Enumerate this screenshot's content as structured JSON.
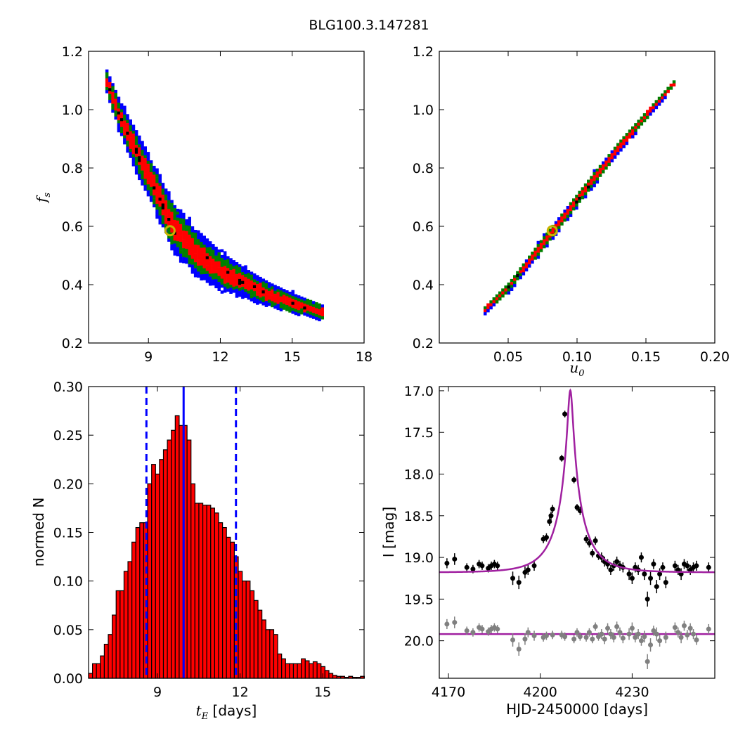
{
  "figure": {
    "title": "BLG100.3.147281"
  },
  "chart_data": [
    {
      "id": "fs_vs_tE",
      "type": "heatmap",
      "title": "",
      "xlabel": "",
      "ylabel": "f_s",
      "xlim": [
        6.5,
        18
      ],
      "ylim": [
        0.2,
        1.2
      ],
      "xticks": [
        9,
        12,
        15,
        18
      ],
      "yticks": [
        0.2,
        0.4,
        0.6,
        0.8,
        1.0,
        1.2
      ],
      "xtick_labels": [
        "9",
        "12",
        "15",
        "18"
      ],
      "ytick_labels": [
        "0.2",
        "0.4",
        "0.6",
        "0.8",
        "1.0",
        "1.2"
      ],
      "grid": false,
      "levels": [
        {
          "name": "outer",
          "color": "#0000ff"
        },
        {
          "name": "middle",
          "color": "#007f00"
        },
        {
          "name": "inner",
          "color": "#ff0000"
        },
        {
          "name": "core",
          "color": "#000000"
        }
      ],
      "ridge": [
        [
          7.2,
          1.1
        ],
        [
          7.8,
          0.97
        ],
        [
          8.5,
          0.85
        ],
        [
          9.3,
          0.72
        ],
        [
          10.0,
          0.6
        ],
        [
          11.0,
          0.51
        ],
        [
          12.0,
          0.45
        ],
        [
          13.0,
          0.41
        ],
        [
          14.0,
          0.37
        ],
        [
          15.0,
          0.34
        ],
        [
          16.2,
          0.31
        ]
      ],
      "widths": [
        0.03,
        0.04,
        0.05,
        0.055,
        0.06,
        0.055,
        0.045,
        0.035,
        0.03,
        0.025,
        0.02
      ],
      "best_fit": {
        "x": 9.9,
        "y": 0.585,
        "color": "#c8b400"
      }
    },
    {
      "id": "fs_vs_u0",
      "type": "heatmap",
      "title": "",
      "xlabel": "u_0",
      "ylabel": "",
      "xlim": [
        0.0,
        0.2
      ],
      "ylim": [
        0.2,
        1.2
      ],
      "xticks": [
        0.05,
        0.1,
        0.15,
        0.2
      ],
      "yticks": [
        0.2,
        0.4,
        0.6,
        0.8,
        1.0,
        1.2
      ],
      "xtick_labels": [
        "0.05",
        "0.10",
        "0.15",
        "0.20"
      ],
      "ytick_labels": [
        "0.2",
        "0.4",
        "0.6",
        "0.8",
        "1.0",
        "1.2"
      ],
      "grid": false,
      "levels": [
        {
          "name": "outer",
          "color": "#0000ff"
        },
        {
          "name": "middle",
          "color": "#007f00"
        },
        {
          "name": "inner",
          "color": "#ff0000"
        },
        {
          "name": "core",
          "color": "#000000"
        }
      ],
      "ridge": [
        [
          0.03,
          0.31
        ],
        [
          0.05,
          0.4
        ],
        [
          0.07,
          0.52
        ],
        [
          0.09,
          0.64
        ],
        [
          0.11,
          0.76
        ],
        [
          0.13,
          0.88
        ],
        [
          0.15,
          0.99
        ],
        [
          0.17,
          1.1
        ]
      ],
      "widths": [
        0.01,
        0.013,
        0.016,
        0.017,
        0.017,
        0.015,
        0.012,
        0.009
      ],
      "best_fit": {
        "x": 0.082,
        "y": 0.585,
        "color": "#c8b400"
      }
    },
    {
      "id": "tE_histogram",
      "type": "bar",
      "title": "",
      "xlabel": "t_E [days]",
      "ylabel": "normed N",
      "xlim": [
        6.5,
        16.5
      ],
      "ylim": [
        0.0,
        0.3
      ],
      "xticks": [
        9,
        12,
        15
      ],
      "yticks": [
        0.0,
        0.05,
        0.1,
        0.15,
        0.2,
        0.25,
        0.3
      ],
      "xtick_labels": [
        "9",
        "12",
        "15"
      ],
      "ytick_labels": [
        "0.00",
        "0.05",
        "0.10",
        "0.15",
        "0.20",
        "0.25",
        "0.30"
      ],
      "grid": false,
      "bar_color": "#ff0000",
      "bin_start": 6.5,
      "bin_width": 0.143,
      "values": [
        0.005,
        0.015,
        0.015,
        0.023,
        0.035,
        0.045,
        0.065,
        0.09,
        0.09,
        0.11,
        0.12,
        0.14,
        0.155,
        0.16,
        0.16,
        0.2,
        0.22,
        0.21,
        0.225,
        0.235,
        0.245,
        0.255,
        0.27,
        0.26,
        0.26,
        0.245,
        0.2,
        0.18,
        0.18,
        0.178,
        0.178,
        0.175,
        0.17,
        0.16,
        0.155,
        0.145,
        0.14,
        0.125,
        0.11,
        0.1,
        0.1,
        0.09,
        0.08,
        0.07,
        0.06,
        0.05,
        0.05,
        0.045,
        0.025,
        0.02,
        0.015,
        0.015,
        0.015,
        0.015,
        0.02,
        0.018,
        0.015,
        0.017,
        0.015,
        0.012,
        0.008,
        0.005,
        0.003,
        0.002,
        0.002,
        0.001,
        0.002,
        0.001,
        0.001,
        0.002
      ],
      "median": 9.95,
      "interval": [
        8.6,
        11.85
      ],
      "line_color": "#0000ff"
    },
    {
      "id": "light_curve",
      "type": "scatter",
      "title": "",
      "xlabel": "HJD-2450000 [days]",
      "ylabel": "I [mag]",
      "xlim": [
        4167,
        4257
      ],
      "ylim": [
        20.45,
        16.95
      ],
      "y_inverted": true,
      "xticks": [
        4170,
        4200,
        4230
      ],
      "yticks": [
        17.0,
        17.5,
        18.0,
        18.5,
        19.0,
        19.5,
        20.0
      ],
      "xtick_labels": [
        "4170",
        "4200",
        "4230"
      ],
      "ytick_labels": [
        "17.0",
        "17.5",
        "18.0",
        "18.5",
        "19.0",
        "19.5",
        "20.0"
      ],
      "grid": false,
      "model_color": "#a020a0",
      "model": {
        "t0": 4209.8,
        "u0": 0.083,
        "tE": 9.95,
        "fs": 0.585,
        "base": 19.18
      },
      "residual_model_level": 19.92,
      "series": [
        {
          "color": "#000000",
          "points": [
            [
              4169.5,
              19.07,
              0.06
            ],
            [
              4172,
              19.02,
              0.07
            ],
            [
              4176,
              19.12,
              0.05
            ],
            [
              4178,
              19.14,
              0.05
            ],
            [
              4180,
              19.08,
              0.05
            ],
            [
              4181,
              19.1,
              0.05
            ],
            [
              4183,
              19.13,
              0.05
            ],
            [
              4184,
              19.1,
              0.05
            ],
            [
              4185,
              19.08,
              0.05
            ],
            [
              4186,
              19.1,
              0.05
            ],
            [
              4191,
              19.25,
              0.08
            ],
            [
              4193,
              19.3,
              0.08
            ],
            [
              4195,
              19.18,
              0.07
            ],
            [
              4196,
              19.15,
              0.06
            ],
            [
              4198,
              19.1,
              0.06
            ],
            [
              4201,
              18.78,
              0.05
            ],
            [
              4202,
              18.76,
              0.05
            ],
            [
              4203,
              18.57,
              0.05
            ],
            [
              4203.5,
              18.5,
              0.05
            ],
            [
              4204,
              18.42,
              0.05
            ],
            [
              4207,
              17.81,
              0.04
            ],
            [
              4208,
              17.28,
              0.04
            ],
            [
              4211,
              18.07,
              0.04
            ],
            [
              4212,
              18.4,
              0.04
            ],
            [
              4213,
              18.44,
              0.05
            ],
            [
              4215,
              18.78,
              0.05
            ],
            [
              4216,
              18.83,
              0.05
            ],
            [
              4217,
              18.95,
              0.05
            ],
            [
              4218,
              18.8,
              0.05
            ],
            [
              4219,
              18.98,
              0.05
            ],
            [
              4220,
              19.0,
              0.06
            ],
            [
              4221,
              19.05,
              0.06
            ],
            [
              4222,
              19.08,
              0.06
            ],
            [
              4223,
              19.15,
              0.06
            ],
            [
              4224,
              19.1,
              0.06
            ],
            [
              4225,
              19.05,
              0.06
            ],
            [
              4226,
              19.1,
              0.06
            ],
            [
              4227,
              19.12,
              0.06
            ],
            [
              4229,
              19.2,
              0.07
            ],
            [
              4230,
              19.25,
              0.07
            ],
            [
              4231,
              19.12,
              0.06
            ],
            [
              4232,
              19.15,
              0.06
            ],
            [
              4233,
              19.0,
              0.06
            ],
            [
              4234,
              19.2,
              0.07
            ],
            [
              4235,
              19.5,
              0.09
            ],
            [
              4236,
              19.25,
              0.08
            ],
            [
              4237,
              19.08,
              0.06
            ],
            [
              4238,
              19.35,
              0.08
            ],
            [
              4239,
              19.2,
              0.07
            ],
            [
              4240,
              19.12,
              0.06
            ],
            [
              4241,
              19.3,
              0.07
            ],
            [
              4244,
              19.1,
              0.06
            ],
            [
              4245,
              19.15,
              0.06
            ],
            [
              4246,
              19.2,
              0.07
            ],
            [
              4247,
              19.08,
              0.06
            ],
            [
              4248,
              19.1,
              0.06
            ],
            [
              4249,
              19.15,
              0.06
            ],
            [
              4250,
              19.12,
              0.06
            ],
            [
              4251,
              19.1,
              0.06
            ],
            [
              4255,
              19.12,
              0.06
            ]
          ]
        },
        {
          "color": "#808080",
          "points": [
            [
              4169.5,
              19.8,
              0.06
            ],
            [
              4172,
              19.78,
              0.07
            ],
            [
              4176,
              19.88,
              0.05
            ],
            [
              4178,
              19.9,
              0.05
            ],
            [
              4180,
              19.84,
              0.05
            ],
            [
              4181,
              19.86,
              0.05
            ],
            [
              4183,
              19.89,
              0.05
            ],
            [
              4184,
              19.86,
              0.05
            ],
            [
              4185,
              19.84,
              0.05
            ],
            [
              4186,
              19.86,
              0.05
            ],
            [
              4191,
              19.99,
              0.08
            ],
            [
              4193,
              20.1,
              0.08
            ],
            [
              4195,
              19.98,
              0.07
            ],
            [
              4196,
              19.9,
              0.06
            ],
            [
              4198,
              19.94,
              0.06
            ],
            [
              4201,
              19.96,
              0.05
            ],
            [
              4202,
              19.94,
              0.05
            ],
            [
              4204,
              19.93,
              0.05
            ],
            [
              4207,
              19.93,
              0.05
            ],
            [
              4208,
              19.95,
              0.05
            ],
            [
              4211,
              19.98,
              0.05
            ],
            [
              4212,
              19.9,
              0.05
            ],
            [
              4213,
              19.95,
              0.05
            ],
            [
              4215,
              19.96,
              0.05
            ],
            [
              4216,
              19.9,
              0.05
            ],
            [
              4217,
              19.98,
              0.05
            ],
            [
              4218,
              19.83,
              0.05
            ],
            [
              4219,
              19.95,
              0.05
            ],
            [
              4220,
              19.92,
              0.06
            ],
            [
              4221,
              19.98,
              0.06
            ],
            [
              4222,
              19.85,
              0.06
            ],
            [
              4223,
              19.92,
              0.06
            ],
            [
              4224,
              19.96,
              0.06
            ],
            [
              4225,
              19.83,
              0.06
            ],
            [
              4226,
              19.9,
              0.06
            ],
            [
              4227,
              19.97,
              0.06
            ],
            [
              4229,
              19.92,
              0.07
            ],
            [
              4230,
              19.85,
              0.07
            ],
            [
              4231,
              19.96,
              0.06
            ],
            [
              4232,
              19.92,
              0.06
            ],
            [
              4233,
              20.0,
              0.06
            ],
            [
              4234,
              19.95,
              0.07
            ],
            [
              4235,
              20.25,
              0.09
            ],
            [
              4236,
              20.05,
              0.08
            ],
            [
              4237,
              19.88,
              0.06
            ],
            [
              4238,
              19.92,
              0.08
            ],
            [
              4239,
              20.0,
              0.07
            ],
            [
              4241,
              19.96,
              0.07
            ],
            [
              4244,
              19.84,
              0.06
            ],
            [
              4245,
              19.9,
              0.06
            ],
            [
              4246,
              19.96,
              0.07
            ],
            [
              4247,
              19.82,
              0.06
            ],
            [
              4248,
              19.93,
              0.06
            ],
            [
              4249,
              19.85,
              0.06
            ],
            [
              4250,
              19.92,
              0.06
            ],
            [
              4251,
              19.99,
              0.06
            ],
            [
              4255,
              19.86,
              0.06
            ]
          ]
        }
      ]
    }
  ]
}
